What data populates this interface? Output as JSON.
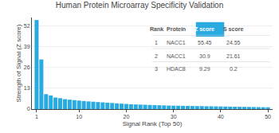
{
  "chart_data": {
    "type": "bar",
    "title": "Human Protein Microarray Specificity Validation",
    "xlabel": "Signal Rank (Top 50)",
    "ylabel": "Strength of Signal (Z score)",
    "x": [
      1,
      2,
      3,
      4,
      5,
      6,
      7,
      8,
      9,
      10,
      11,
      12,
      13,
      14,
      15,
      16,
      17,
      18,
      19,
      20,
      21,
      22,
      23,
      24,
      25,
      26,
      27,
      28,
      29,
      30,
      31,
      32,
      33,
      34,
      35,
      36,
      37,
      38,
      39,
      40,
      41,
      42,
      43,
      44,
      45,
      46,
      47,
      48,
      49,
      50
    ],
    "values": [
      55.45,
      30.9,
      9.29,
      8.5,
      7.2,
      6.8,
      6.2,
      5.9,
      5.6,
      5.3,
      5.0,
      4.8,
      4.6,
      4.4,
      4.2,
      4.0,
      3.8,
      3.6,
      3.4,
      3.2,
      3.0,
      2.9,
      2.8,
      2.7,
      2.6,
      2.5,
      2.4,
      2.3,
      2.2,
      2.15,
      2.1,
      2.05,
      2.0,
      1.95,
      1.9,
      1.85,
      1.8,
      1.75,
      1.7,
      1.65,
      1.6,
      1.55,
      1.5,
      1.45,
      1.4,
      1.35,
      1.3,
      1.25,
      1.2,
      1.15
    ],
    "color": "#29abe2",
    "xlim": [
      0,
      51
    ],
    "xticks": [
      1,
      10,
      20,
      30,
      40,
      50
    ],
    "ylim": [
      0,
      57
    ],
    "yticks": [
      0,
      13,
      26,
      39,
      52
    ],
    "grid": true,
    "table": {
      "headers": [
        "Rank",
        "Protein",
        "Z score",
        "S score"
      ],
      "rows": [
        [
          "1",
          "NACC1",
          "55.45",
          "24.55"
        ],
        [
          "2",
          "NACC1",
          "30.9",
          "21.61"
        ],
        [
          "3",
          "HDAC8",
          "9.29",
          "0.2"
        ]
      ]
    }
  }
}
